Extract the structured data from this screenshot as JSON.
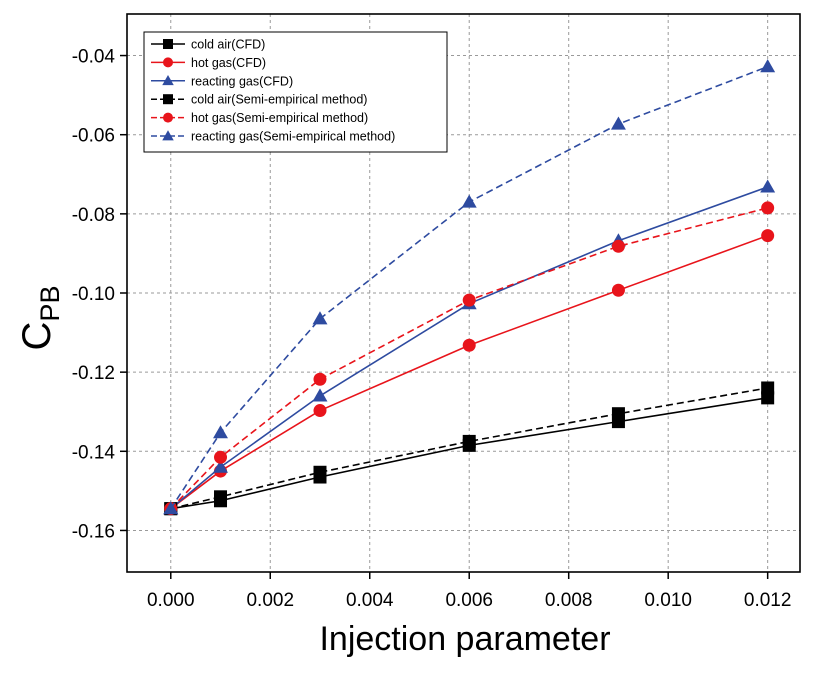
{
  "chart_data": {
    "type": "line",
    "title": "",
    "xlabel": "Injection parameter",
    "ylabel": "C",
    "ylabel_subscript": "PB",
    "xlim": [
      -0.00088,
      0.01265
    ],
    "ylim": [
      -0.1705,
      -0.0295
    ],
    "xticks": [
      0.0,
      0.002,
      0.004,
      0.006,
      0.008,
      0.01,
      0.012
    ],
    "xtick_labels": [
      "0.000",
      "0.002",
      "0.004",
      "0.006",
      "0.008",
      "0.010",
      "0.012"
    ],
    "yticks": [
      -0.16,
      -0.14,
      -0.12,
      -0.1,
      -0.08,
      -0.06,
      -0.04
    ],
    "ytick_labels": [
      "-0.16",
      "-0.14",
      "-0.12",
      "-0.10",
      "-0.08",
      "-0.06",
      "-0.04"
    ],
    "grid": true,
    "legend_position": "top-left",
    "x": [
      0.0,
      0.001,
      0.003,
      0.006,
      0.009,
      0.012
    ],
    "series": [
      {
        "name": "cold air(CFD)",
        "color": "#000000",
        "marker": "square",
        "dashed": false,
        "values": [
          -0.1545,
          -0.1525,
          -0.1465,
          -0.1385,
          -0.1325,
          -0.1265
        ]
      },
      {
        "name": "hot gas(CFD)",
        "color": "#e8141b",
        "marker": "circle",
        "dashed": false,
        "values": [
          -0.1545,
          -0.145,
          -0.1297,
          -0.1132,
          -0.0993,
          -0.0855
        ]
      },
      {
        "name": "reacting gas(CFD)",
        "color": "#2e4ba0",
        "marker": "triangle",
        "dashed": false,
        "values": [
          -0.1545,
          -0.144,
          -0.126,
          -0.1027,
          -0.0868,
          -0.0732
        ]
      },
      {
        "name": "cold air(Semi-empirical method)",
        "color": "#000000",
        "marker": "square",
        "dashed": true,
        "values": [
          -0.1545,
          -0.1515,
          -0.1453,
          -0.1375,
          -0.1305,
          -0.124
        ]
      },
      {
        "name": "hot gas(Semi-empirical method)",
        "color": "#e8141b",
        "marker": "circle",
        "dashed": true,
        "values": [
          -0.1545,
          -0.1415,
          -0.1218,
          -0.1018,
          -0.0882,
          -0.0785
        ]
      },
      {
        "name": "reacting gas(Semi-empirical method)",
        "color": "#2e4ba0",
        "marker": "triangle",
        "dashed": true,
        "values": [
          -0.1545,
          -0.1353,
          -0.1065,
          -0.077,
          -0.0573,
          -0.0428
        ]
      }
    ]
  }
}
